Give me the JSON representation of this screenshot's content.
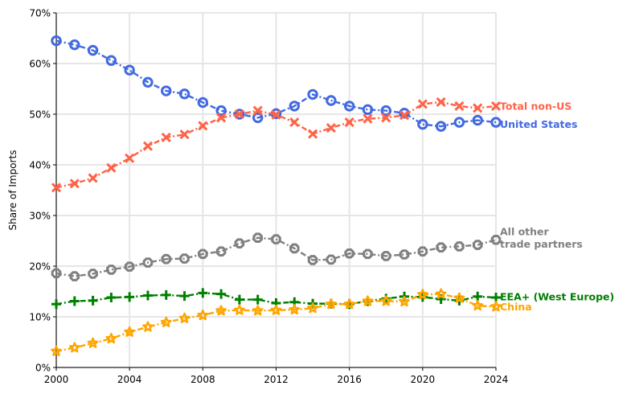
{
  "chart_data": {
    "type": "line",
    "title": "",
    "xlabel": "",
    "ylabel": "Share of Imports",
    "xlim": [
      2000,
      2024
    ],
    "ylim": [
      0,
      70
    ],
    "grid": true,
    "x_ticks": [
      2000,
      2004,
      2008,
      2012,
      2016,
      2020,
      2024
    ],
    "x_tick_labels": [
      "2000",
      "2004",
      "2008",
      "2012",
      "2016",
      "2020",
      "2024"
    ],
    "y_ticks": [
      0,
      10,
      20,
      30,
      40,
      50,
      60,
      70
    ],
    "y_tick_labels": [
      "0%",
      "10%",
      "20%",
      "30%",
      "40%",
      "50%",
      "60%",
      "70%"
    ],
    "x": [
      2000,
      2001,
      2002,
      2003,
      2004,
      2005,
      2006,
      2007,
      2008,
      2009,
      2010,
      2011,
      2012,
      2013,
      2014,
      2015,
      2016,
      2017,
      2018,
      2019,
      2020,
      2021,
      2022,
      2023,
      2024
    ],
    "series": [
      {
        "name": "United States",
        "label_lines": [
          "United States"
        ],
        "color": "#4169e1",
        "marker": "circle",
        "values": [
          64.5,
          63.7,
          62.6,
          60.6,
          58.7,
          56.3,
          54.6,
          54.0,
          52.3,
          50.7,
          50.0,
          49.3,
          50.1,
          51.6,
          53.9,
          52.7,
          51.6,
          50.9,
          50.7,
          50.2,
          48.0,
          47.6,
          48.4,
          48.8,
          48.4
        ]
      },
      {
        "name": "Total non-US",
        "label_lines": [
          "Total non-US"
        ],
        "color": "#ff6347",
        "marker": "x",
        "values": [
          35.5,
          36.3,
          37.4,
          39.4,
          41.3,
          43.7,
          45.4,
          46.0,
          47.7,
          49.3,
          50.0,
          50.7,
          49.9,
          48.4,
          46.1,
          47.3,
          48.4,
          49.1,
          49.3,
          49.8,
          52.0,
          52.4,
          51.6,
          51.2,
          51.6
        ]
      },
      {
        "name": "All other trade partners",
        "label_lines": [
          "All other",
          "trade partners"
        ],
        "color": "#808080",
        "marker": "octagon",
        "values": [
          18.6,
          18.0,
          18.5,
          19.3,
          19.9,
          20.7,
          21.4,
          21.5,
          22.4,
          22.9,
          24.5,
          25.6,
          25.3,
          23.5,
          21.2,
          21.3,
          22.5,
          22.4,
          22.0,
          22.3,
          22.9,
          23.7,
          23.9,
          24.2,
          25.2
        ]
      },
      {
        "name": "EEA+ (West Europe)",
        "label_lines": [
          "EEA+ (West Europe)"
        ],
        "color": "#008000",
        "marker": "plus",
        "values": [
          12.5,
          13.1,
          13.2,
          13.8,
          13.9,
          14.2,
          14.3,
          14.1,
          14.7,
          14.5,
          13.4,
          13.4,
          12.7,
          12.9,
          12.6,
          12.6,
          12.5,
          13.1,
          13.6,
          14.0,
          13.9,
          13.5,
          13.2,
          14.0,
          13.8
        ]
      },
      {
        "name": "China",
        "label_lines": [
          "China"
        ],
        "color": "#ffa500",
        "marker": "star",
        "values": [
          3.2,
          3.9,
          4.8,
          5.7,
          7.0,
          8.0,
          8.9,
          9.7,
          10.3,
          11.2,
          11.3,
          11.2,
          11.3,
          11.4,
          11.7,
          12.5,
          12.5,
          13.1,
          13.1,
          13.0,
          14.4,
          14.5,
          13.7,
          12.2,
          12.0
        ]
      }
    ]
  }
}
